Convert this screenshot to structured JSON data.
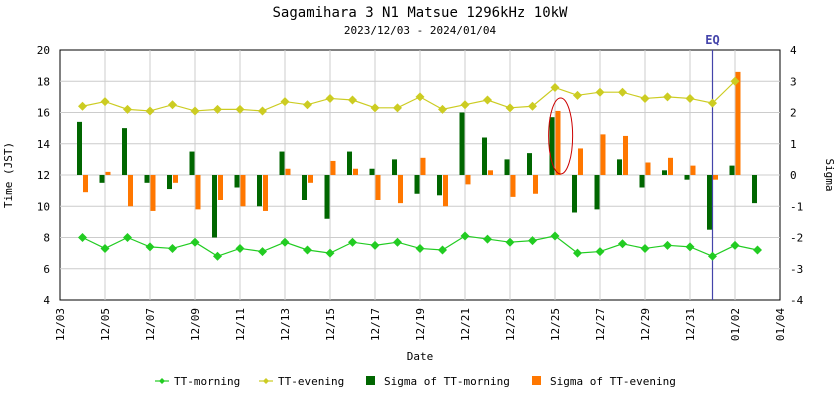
{
  "chart_data": {
    "type": "bar+line",
    "title": "Sagamihara 3 N1 Matsue 1296kHz 10kW",
    "subtitle": "2023/12/03 - 2024/01/04",
    "xlabel": "Date",
    "ylabel_left": "Time (JST)",
    "ylabel_right": "Sigma",
    "ylim_left": [
      4,
      20
    ],
    "yticks_left": [
      "4",
      "6",
      "8",
      "10",
      "12",
      "14",
      "16",
      "18",
      "20"
    ],
    "ylim_right": [
      -4,
      4
    ],
    "yticks_right": [
      "-4",
      "-3",
      "-2",
      "-1",
      "0",
      "1",
      "2",
      "3",
      "4"
    ],
    "x_start_day": 0,
    "x_end_day": 32,
    "x_tick_labels": [
      "12/03",
      "12/05",
      "12/07",
      "12/09",
      "12/11",
      "12/13",
      "12/15",
      "12/17",
      "12/19",
      "12/21",
      "12/23",
      "12/25",
      "12/27",
      "12/29",
      "12/31",
      "01/02",
      "01/04"
    ],
    "days": [
      1,
      2,
      3,
      4,
      5,
      6,
      7,
      8,
      9,
      10,
      11,
      12,
      13,
      14,
      15,
      16,
      17,
      18,
      19,
      20,
      21,
      22,
      23,
      24,
      25,
      26,
      27,
      28,
      29,
      30,
      31
    ],
    "series": [
      {
        "name": "TT-morning",
        "kind": "line",
        "axis": "left",
        "color": "#22cc22",
        "values": [
          8.0,
          7.3,
          8.0,
          7.4,
          7.3,
          7.7,
          6.8,
          7.3,
          7.1,
          7.7,
          7.2,
          7.0,
          7.7,
          7.5,
          7.7,
          7.3,
          7.2,
          8.1,
          7.9,
          7.7,
          7.8,
          8.1,
          7.0,
          7.1,
          7.6,
          7.3,
          7.5,
          7.4,
          6.8,
          7.5,
          7.2
        ]
      },
      {
        "name": "TT-evening",
        "kind": "line",
        "axis": "left",
        "color": "#cccc22",
        "values": [
          16.4,
          16.7,
          16.2,
          16.1,
          16.5,
          16.1,
          16.2,
          16.2,
          16.1,
          16.7,
          16.5,
          16.9,
          16.8,
          16.3,
          16.3,
          17.0,
          16.2,
          16.5,
          16.8,
          16.3,
          16.4,
          17.6,
          17.1,
          17.3,
          17.3,
          16.9,
          17.0,
          16.9,
          16.6,
          18.0,
          null
        ]
      },
      {
        "name": "Sigma of TT-morning",
        "kind": "bar",
        "axis": "right",
        "color": "#006600",
        "values": [
          1.7,
          -0.25,
          1.5,
          -0.25,
          -0.45,
          0.75,
          -2.0,
          -0.4,
          -1.0,
          0.75,
          -0.8,
          -1.4,
          0.75,
          0.2,
          0.5,
          -0.6,
          -0.65,
          2.0,
          1.2,
          0.5,
          0.7,
          1.85,
          -1.2,
          -1.1,
          0.5,
          -0.4,
          0.15,
          -0.15,
          -1.75,
          0.3,
          -0.9
        ]
      },
      {
        "name": "Sigma of TT-evening",
        "kind": "bar",
        "axis": "right",
        "color": "#ff7700",
        "values": [
          -0.55,
          0.1,
          -1.0,
          -1.15,
          -0.25,
          -1.1,
          -0.8,
          -1.0,
          -1.15,
          0.2,
          -0.25,
          0.45,
          0.2,
          -0.8,
          -0.9,
          0.55,
          -1.0,
          -0.3,
          0.15,
          -0.7,
          -0.6,
          2.05,
          0.85,
          1.3,
          1.25,
          0.4,
          0.55,
          0.3,
          -0.15,
          3.3,
          0.0
        ]
      }
    ],
    "annotations": [
      {
        "type": "vline",
        "label": "EQ",
        "day": 29.0,
        "color": "#4444aa"
      },
      {
        "type": "ellipse",
        "day": 22.25,
        "color": "#cc0000"
      }
    ],
    "legend": {
      "placement": "bottom",
      "items": [
        "TT-morning",
        "TT-evening",
        "Sigma of TT-morning",
        "Sigma of TT-evening"
      ]
    }
  }
}
